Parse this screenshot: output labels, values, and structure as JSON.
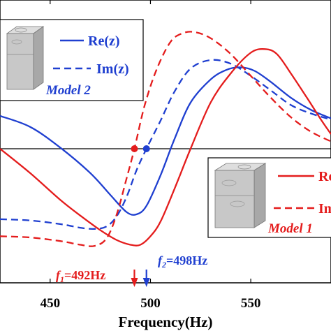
{
  "chart_data": {
    "type": "line",
    "xlabel": "Frequency(Hz)",
    "xlim": [
      425,
      590
    ],
    "x_ticks": [
      450,
      500,
      550
    ],
    "ylim": [
      -1.0,
      1.0
    ],
    "zero_line": true,
    "grid": false,
    "series": [
      {
        "name": "Re(z)",
        "group": "model2",
        "color": "#1f3fd0",
        "dash": "solid",
        "x": [
          425,
          440,
          455,
          470,
          480,
          488,
          493,
          498,
          505,
          512,
          520,
          530,
          538,
          545,
          552,
          560,
          570,
          580,
          590
        ],
        "y": [
          0.27,
          0.18,
          0.01,
          -0.2,
          -0.38,
          -0.52,
          -0.54,
          -0.47,
          -0.22,
          0.08,
          0.38,
          0.57,
          0.65,
          0.67,
          0.64,
          0.55,
          0.42,
          0.32,
          0.25
        ]
      },
      {
        "name": "Im(z)",
        "group": "model2",
        "color": "#1f3fd0",
        "dash": "dashed",
        "x": [
          425,
          440,
          455,
          465,
          472,
          478,
          483,
          488,
          493,
          498,
          505,
          512,
          520,
          530,
          540,
          550,
          560,
          570,
          580,
          590
        ],
        "y": [
          -0.58,
          -0.59,
          -0.62,
          -0.65,
          -0.66,
          -0.64,
          -0.56,
          -0.4,
          -0.18,
          0.0,
          0.23,
          0.47,
          0.66,
          0.73,
          0.7,
          0.6,
          0.48,
          0.36,
          0.29,
          0.24
        ]
      },
      {
        "name": "Re(z)",
        "group": "model1",
        "color": "#e41c1c",
        "dash": "solid",
        "x": [
          425,
          440,
          455,
          465,
          475,
          483,
          490,
          495,
          500,
          505,
          512,
          520,
          530,
          540,
          550,
          557,
          563,
          570,
          578,
          585,
          590
        ],
        "y": [
          0.0,
          -0.2,
          -0.42,
          -0.55,
          -0.67,
          -0.75,
          -0.79,
          -0.79,
          -0.72,
          -0.6,
          -0.33,
          0.0,
          0.38,
          0.62,
          0.79,
          0.82,
          0.78,
          0.62,
          0.42,
          0.24,
          0.12
        ]
      },
      {
        "name": "Im(z)",
        "group": "model1",
        "color": "#e41c1c",
        "dash": "dashed",
        "x": [
          425,
          440,
          455,
          465,
          472,
          478,
          483,
          488,
          492,
          497,
          503,
          510,
          516,
          522,
          530,
          540,
          550,
          560,
          570,
          580,
          590
        ],
        "y": [
          -0.72,
          -0.73,
          -0.76,
          -0.79,
          -0.8,
          -0.74,
          -0.55,
          -0.25,
          0.0,
          0.35,
          0.65,
          0.88,
          0.95,
          0.96,
          0.91,
          0.78,
          0.6,
          0.42,
          0.26,
          0.14,
          0.06
        ]
      }
    ],
    "markers": [
      {
        "x": 492,
        "y": 0.0,
        "color": "#e41c1c"
      },
      {
        "x": 498,
        "y": 0.0,
        "color": "#1f3fd0"
      }
    ],
    "legends": [
      {
        "id": "model2",
        "title": "Model 2",
        "color": "#1f3fd0",
        "entries": [
          "Re(z)",
          "Im(z)"
        ]
      },
      {
        "id": "model1",
        "title": "Model 1",
        "color": "#e41c1c",
        "entries": [
          "Re",
          "Im"
        ]
      }
    ],
    "annotations": [
      {
        "id": "f1",
        "prefix": "f",
        "sub": "1",
        "text": "=492Hz",
        "x": 492,
        "color": "#e41c1c"
      },
      {
        "id": "f2",
        "prefix": "f",
        "sub": "2",
        "text": "=498Hz",
        "x": 498,
        "color": "#1f3fd0"
      }
    ]
  }
}
